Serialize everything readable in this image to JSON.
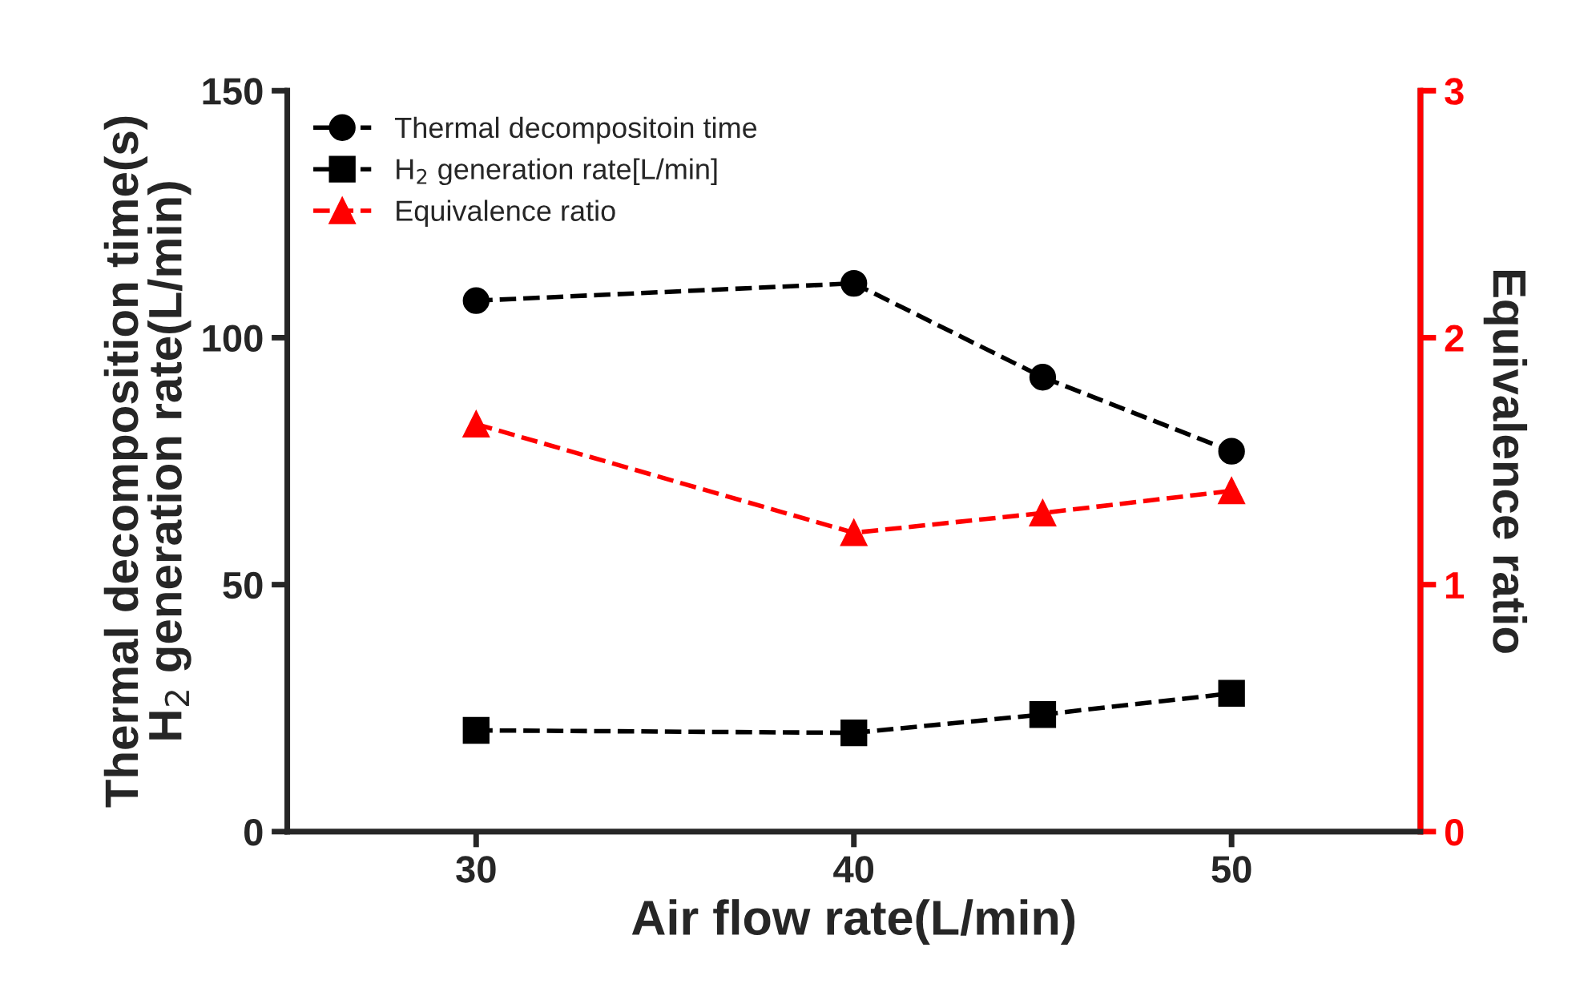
{
  "chart_data": {
    "type": "line",
    "xlabel": "Air flow rate(L/min)",
    "ylabel": "Thermal decomposition time(s)\nH$_{2}$ generation rate(L/min)",
    "y2label": "Equivalence ratio",
    "x": [
      30,
      40,
      45,
      50
    ],
    "series": [
      {
        "name": "Thermal decompositoin time",
        "color": "#000000",
        "marker": "circle",
        "values": [
          107.5,
          111,
          92,
          77
        ]
      },
      {
        "name": "H$_{2}$ generation rate[L/min]",
        "color": "#000000",
        "marker": "square",
        "values": [
          20.5,
          20,
          23.7,
          28
        ]
      },
      {
        "name": "Equivalence ratio",
        "color": "#ff0000",
        "marker": "triangle",
        "axis": "y2",
        "values": [
          1.65,
          1.21,
          1.29,
          1.38
        ]
      }
    ],
    "xlim": [
      25,
      55
    ],
    "xticks": [
      30,
      40,
      50
    ],
    "ylim": [
      0,
      150
    ],
    "yticks": [
      0,
      50,
      100,
      150
    ],
    "y2lim": [
      0,
      3
    ],
    "y2ticks": [
      0,
      1,
      2,
      3
    ],
    "line_style": "dashed",
    "grid": false,
    "legend": "top left"
  }
}
